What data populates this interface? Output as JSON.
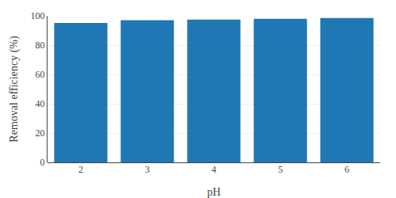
{
  "chart_data": {
    "type": "bar",
    "xlabel": "pH",
    "ylabel": "Removal efficiency (%)",
    "categories": [
      "2",
      "3",
      "4",
      "5",
      "6"
    ],
    "values": [
      95.2,
      97.0,
      97.5,
      98.0,
      98.5
    ],
    "ylim": [
      0,
      100
    ],
    "yticks": [
      0,
      20,
      40,
      60,
      80,
      100
    ],
    "grid": true
  }
}
